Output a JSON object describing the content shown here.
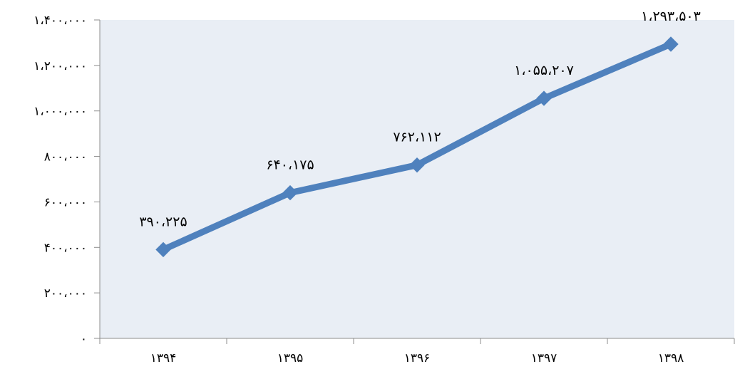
{
  "chart_data": {
    "type": "line",
    "categories": [
      "۱۳۹۴",
      "۱۳۹۵",
      "۱۳۹۶",
      "۱۳۹۷",
      "۱۳۹۸"
    ],
    "series": [
      {
        "values": [
          390225,
          640175,
          762112,
          1055207,
          1293503
        ],
        "data_labels": [
          "۳۹۰،۲۲۵",
          "۶۴۰،۱۷۵",
          "۷۶۲،۱۱۲",
          "۱،۰۵۵،۲۰۷",
          "۱،۲۹۳،۵۰۳"
        ]
      }
    ],
    "ylim": [
      0,
      1400000
    ],
    "yticks": [
      0,
      200000,
      400000,
      600000,
      800000,
      1000000,
      1200000,
      1400000
    ],
    "ytick_labels": [
      "۰",
      "۲۰۰،۰۰۰",
      "۴۰۰،۰۰۰",
      "۶۰۰،۰۰۰",
      "۸۰۰،۰۰۰",
      "۱،۰۰۰،۰۰۰",
      "۱،۲۰۰،۰۰۰",
      "۱،۴۰۰،۰۰۰"
    ],
    "title": "",
    "xlabel": "",
    "ylabel": "",
    "grid": false,
    "legend": "none",
    "colors": {
      "plot_background": "#e9eef5",
      "line": "#4f81bd",
      "marker": "#4f81bd",
      "axis": "#8c8c8c",
      "text": "#000000"
    }
  }
}
